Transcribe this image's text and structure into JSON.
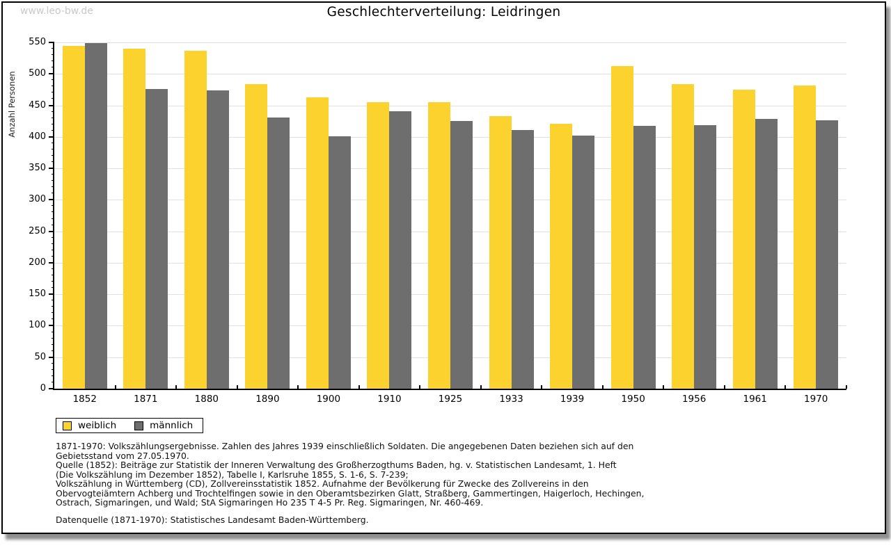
{
  "page": {
    "watermark": "www.leo-bw.de",
    "title": "Geschlechterverteilung: Leidringen"
  },
  "chart_data": {
    "type": "bar",
    "title": "Geschlechterverteilung: Leidringen",
    "ylabel": "Anzahl Personen",
    "xlabel": "",
    "ylim": [
      0,
      550
    ],
    "ytick_step": 50,
    "yminor_step": 10,
    "grid": true,
    "legend_position": "bottom-left",
    "categories": [
      "1852",
      "1871",
      "1880",
      "1890",
      "1900",
      "1910",
      "1925",
      "1933",
      "1939",
      "1950",
      "1956",
      "1961",
      "1970"
    ],
    "series": [
      {
        "name": "weiblich",
        "color": "#FCD22F",
        "values": [
          545,
          540,
          537,
          484,
          463,
          455,
          455,
          433,
          421,
          513,
          484,
          475,
          481
        ]
      },
      {
        "name": "männlich",
        "color": "#6E6E6E",
        "values": [
          549,
          476,
          474,
          431,
          401,
          441,
          425,
          411,
          402,
          417,
          419,
          428,
          426
        ]
      }
    ]
  },
  "colors": {
    "gridline": "#E0E0E0",
    "axis": "#000000",
    "watermark": "#C9C9C9",
    "weiblich": "#FCD22F",
    "maennlich": "#6E6E6E"
  },
  "footer": {
    "lines": [
      "1871-1970: Volkszählungsergebnisse. Zahlen des Jahres 1939 einschließlich Soldaten. Die angegebenen Daten beziehen sich auf den",
      "Gebietsstand vom 27.05.1970.",
      "Quelle (1852): Beiträge zur Statistik der Inneren Verwaltung des Großherzogthums Baden, hg. v. Statistischen Landesamt, 1. Heft",
      "(Die Volkszählung im Dezember 1852), Tabelle I, Karlsruhe 1855, S. 1-6, S. 7-239;",
      "Volkszählung in Württemberg (CD), Zollvereinsstatistik 1852. Aufnahme der Bevölkerung für Zwecke des Zollvereins in den",
      "Obervogteiämtern Achberg und Trochtelfingen sowie in den Oberamtsbezirken Glatt, Straßberg, Gammertingen, Haigerloch, Hechingen,",
      "Ostrach, Sigmaringen, und Wald; StA Sigmaringen Ho 235 T 4-5 Pr. Reg. Sigmaringen, Nr. 460-469."
    ],
    "datasource": "Datenquelle (1871-1970): Statistisches Landesamt Baden-Württemberg."
  }
}
